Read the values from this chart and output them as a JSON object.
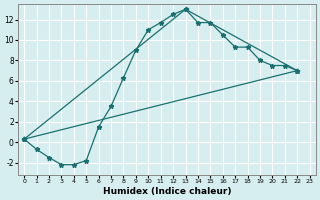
{
  "xlabel": "Humidex (Indice chaleur)",
  "background_color": "#d6eef0",
  "grid_color": "#ffffff",
  "line_color": "#1a7070",
  "xlim": [
    -0.5,
    23.5
  ],
  "ylim": [
    -3.2,
    13.5
  ],
  "xticks": [
    0,
    1,
    2,
    3,
    4,
    5,
    6,
    7,
    8,
    9,
    10,
    11,
    12,
    13,
    14,
    15,
    16,
    17,
    18,
    19,
    20,
    21,
    22,
    23
  ],
  "yticks": [
    -2,
    0,
    2,
    4,
    6,
    8,
    10,
    12
  ],
  "line1_x": [
    0,
    1,
    2,
    3,
    4,
    5,
    6,
    7,
    8,
    9,
    10,
    11,
    12,
    13,
    14,
    15,
    16,
    17,
    18,
    19,
    20,
    21,
    22
  ],
  "line1_y": [
    0.3,
    -0.7,
    -1.5,
    -2.2,
    -2.2,
    -1.8,
    1.5,
    3.5,
    6.3,
    9.0,
    11.0,
    11.7,
    12.5,
    13.0,
    11.7,
    11.7,
    10.5,
    9.3,
    9.3,
    8.0,
    7.5,
    7.5,
    7.0
  ],
  "line2_x": [
    0,
    13,
    22
  ],
  "line2_y": [
    0.3,
    13.0,
    7.0
  ],
  "line3_x": [
    0,
    22
  ],
  "line3_y": [
    0.3,
    7.0
  ]
}
